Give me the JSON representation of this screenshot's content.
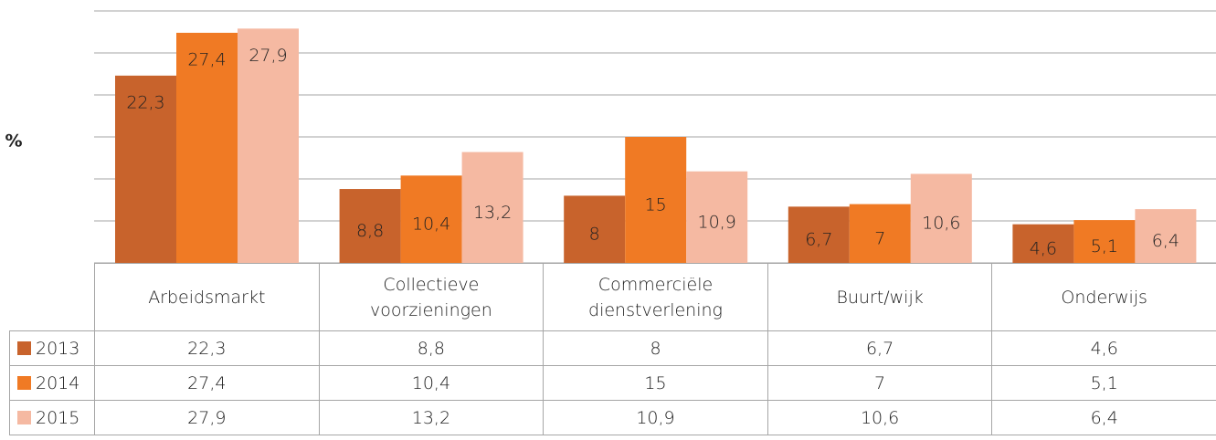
{
  "chart_data": {
    "type": "bar",
    "ylabel": "%",
    "categories": [
      "Arbeidsmarkt",
      "Collectieve voorzieningen",
      "Commerciële dienstverlening",
      "Buurt/wijk",
      "Onderwijs"
    ],
    "series": [
      {
        "name": "2013",
        "color": "#c8632c",
        "values": [
          22.3,
          8.8,
          8,
          6.7,
          4.6
        ],
        "value_labels": [
          "22,3",
          "8,8",
          "8",
          "6,7",
          "4,6"
        ]
      },
      {
        "name": "2014",
        "color": "#f07a24",
        "values": [
          27.4,
          10.4,
          15,
          7,
          5.1
        ],
        "value_labels": [
          "27,4",
          "10,4",
          "15",
          "7",
          "5,1"
        ]
      },
      {
        "name": "2015",
        "color": "#f5b9a2",
        "values": [
          27.9,
          13.2,
          10.9,
          10.6,
          6.4
        ],
        "value_labels": [
          "27,9",
          "13,2",
          "10,9",
          "10,6",
          "6,4"
        ]
      }
    ],
    "ylim": [
      0,
      30
    ],
    "yticks": [
      0,
      5,
      10,
      15,
      20,
      25,
      30
    ],
    "grid": true
  }
}
